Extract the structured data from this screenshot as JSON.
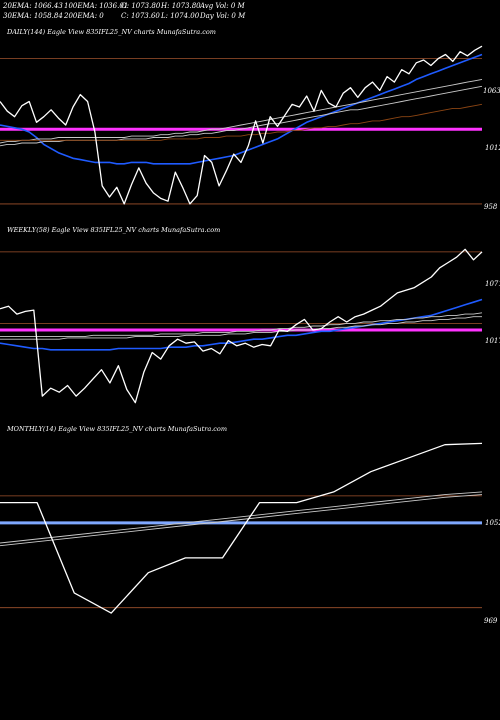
{
  "header": {
    "row1": {
      "ema20": "20EMA: 1066.43",
      "ema100": "100EMA: 1036.01",
      "open": "O: 1073.80",
      "high": "H: 1073.80",
      "avg_vol": "Avg Vol: 0  M"
    },
    "row2": {
      "ema30": "30EMA: 1058.84",
      "ema200": "200EMA: 0",
      "close": "C: 1073.60",
      "low": "L: 1074.00",
      "day_vol": "Day Vol: 0  M"
    }
  },
  "colors": {
    "background": "#000000",
    "price_line": "#ffffff",
    "ema_blue": "#1f5bff",
    "ema_gray": "#c9c9c9",
    "ema_brown": "#8b4513",
    "level_line": "#a0522d",
    "magenta_band": "#ff33ff",
    "blue_band": "#7fa8ff"
  },
  "chart_data": [
    {
      "type": "line",
      "title": "DAILY(144) Eagle   View  835IFL25_NV charts MunafaSutra.com",
      "y_ticks": [
        "1063",
        "1012",
        "958"
      ],
      "y_tick_values": [
        1063,
        1012,
        958
      ],
      "ylim": [
        950,
        1075
      ],
      "x_count": 67,
      "highlight_band": 1012,
      "series": [
        {
          "role": "price",
          "color": "#ffffff",
          "values": [
            1032,
            1025,
            1021,
            1029,
            1032,
            1017,
            1021,
            1026,
            1020,
            1015,
            1028,
            1037,
            1032,
            1010,
            971,
            963,
            970,
            958,
            972,
            984,
            973,
            966,
            962,
            960,
            981,
            970,
            958,
            964,
            993,
            988,
            971,
            982,
            994,
            988,
            1000,
            1018,
            1002,
            1021,
            1014,
            1022,
            1030,
            1028,
            1036,
            1025,
            1040,
            1031,
            1028,
            1038,
            1042,
            1035,
            1042,
            1046,
            1040,
            1050,
            1046,
            1055,
            1052,
            1060,
            1062,
            1058,
            1063,
            1066,
            1061,
            1068,
            1065,
            1069,
            1072
          ]
        },
        {
          "role": "ema",
          "color": "#1f5bff",
          "values": [
            1015,
            1014,
            1013,
            1012,
            1010,
            1006,
            1001,
            998,
            995,
            993,
            991,
            990,
            989,
            988,
            988,
            988,
            987,
            987,
            988,
            988,
            988,
            987,
            987,
            987,
            987,
            987,
            987,
            988,
            989,
            990,
            991,
            992,
            993,
            995,
            997,
            999,
            1001,
            1003,
            1005,
            1008,
            1011,
            1014,
            1017,
            1019,
            1021,
            1023,
            1025,
            1027,
            1029,
            1031,
            1033,
            1035,
            1037,
            1039,
            1041,
            1043,
            1045,
            1048,
            1050,
            1052,
            1054,
            1056,
            1058,
            1060,
            1062,
            1064,
            1066
          ]
        },
        {
          "role": "ema",
          "color": "#c9c9c9",
          "values": [
            1002,
            1003,
            1003,
            1004,
            1004,
            1005,
            1005,
            1005,
            1006,
            1006,
            1006,
            1006,
            1006,
            1006,
            1006,
            1006,
            1006,
            1006,
            1007,
            1007,
            1007,
            1007,
            1008,
            1008,
            1009,
            1009,
            1010,
            1010,
            1011,
            1012,
            1012,
            1013,
            1014,
            1015,
            1016,
            1017,
            1018,
            1019,
            1020,
            1021,
            1022,
            1023,
            1024,
            1025,
            1026,
            1027,
            1028,
            1029,
            1030,
            1031,
            1032,
            1033,
            1034,
            1035,
            1036,
            1037,
            1038,
            1039,
            1040,
            1041,
            1042,
            1043,
            1044,
            1045,
            1046,
            1047,
            1048
          ]
        },
        {
          "role": "ema",
          "color": "#c9c9c9",
          "values": [
            1000,
            1001,
            1001,
            1002,
            1002,
            1002,
            1003,
            1003,
            1003,
            1004,
            1004,
            1004,
            1004,
            1004,
            1004,
            1004,
            1004,
            1005,
            1005,
            1005,
            1005,
            1006,
            1006,
            1006,
            1007,
            1007,
            1008,
            1008,
            1009,
            1009,
            1010,
            1011,
            1011,
            1012,
            1013,
            1014,
            1015,
            1016,
            1016,
            1017,
            1018,
            1019,
            1020,
            1021,
            1022,
            1023,
            1024,
            1025,
            1026,
            1026,
            1027,
            1028,
            1029,
            1030,
            1031,
            1032,
            1033,
            1034,
            1035,
            1036,
            1037,
            1038,
            1039,
            1040,
            1041,
            1042,
            1043
          ]
        },
        {
          "role": "ema",
          "color": "#8b4513",
          "values": [
            1004,
            1004,
            1004,
            1004,
            1004,
            1004,
            1004,
            1004,
            1004,
            1004,
            1004,
            1004,
            1004,
            1004,
            1004,
            1004,
            1004,
            1004,
            1004,
            1004,
            1004,
            1004,
            1004,
            1005,
            1005,
            1005,
            1005,
            1005,
            1006,
            1006,
            1006,
            1007,
            1007,
            1007,
            1008,
            1008,
            1009,
            1009,
            1010,
            1010,
            1011,
            1011,
            1012,
            1013,
            1013,
            1014,
            1014,
            1015,
            1016,
            1016,
            1017,
            1018,
            1018,
            1019,
            1020,
            1021,
            1021,
            1022,
            1023,
            1024,
            1025,
            1026,
            1027,
            1027,
            1028,
            1029,
            1030
          ]
        }
      ]
    },
    {
      "type": "line",
      "title": "WEEKLY(58) Eagle   View  835IFL25_NV charts MunafaSutra.com",
      "y_ticks": [
        "1071",
        "1017"
      ],
      "y_tick_values": [
        1071,
        1017
      ],
      "ylim": [
        950,
        1080
      ],
      "x_count": 58,
      "highlight_band": 1012,
      "series": [
        {
          "role": "price",
          "color": "#ffffff",
          "values": [
            1028,
            1030,
            1024,
            1026,
            1027,
            962,
            968,
            965,
            970,
            962,
            968,
            975,
            982,
            972,
            985,
            967,
            957,
            980,
            995,
            990,
            1000,
            1005,
            1002,
            1003,
            996,
            998,
            994,
            1004,
            1000,
            1002,
            999,
            1001,
            1000,
            1012,
            1011,
            1016,
            1020,
            1012,
            1013,
            1018,
            1022,
            1018,
            1022,
            1024,
            1027,
            1030,
            1035,
            1040,
            1042,
            1044,
            1048,
            1052,
            1059,
            1063,
            1067,
            1073,
            1065,
            1071
          ]
        },
        {
          "role": "ema",
          "color": "#1f5bff",
          "values": [
            1002,
            1001,
            1000,
            999,
            998,
            998,
            997,
            997,
            997,
            997,
            997,
            997,
            997,
            997,
            998,
            998,
            998,
            998,
            998,
            998,
            999,
            999,
            999,
            1000,
            1000,
            1001,
            1002,
            1002,
            1003,
            1004,
            1005,
            1005,
            1006,
            1007,
            1008,
            1008,
            1009,
            1010,
            1011,
            1011,
            1012,
            1013,
            1014,
            1015,
            1016,
            1017,
            1018,
            1019,
            1020,
            1021,
            1022,
            1023,
            1025,
            1027,
            1029,
            1031,
            1033,
            1035
          ]
        },
        {
          "role": "ema",
          "color": "#c9c9c9",
          "values": [
            1007,
            1007,
            1007,
            1007,
            1007,
            1007,
            1007,
            1007,
            1007,
            1007,
            1007,
            1008,
            1008,
            1008,
            1008,
            1008,
            1008,
            1008,
            1008,
            1009,
            1009,
            1009,
            1009,
            1009,
            1010,
            1010,
            1010,
            1010,
            1011,
            1011,
            1011,
            1012,
            1012,
            1013,
            1013,
            1014,
            1014,
            1015,
            1015,
            1016,
            1016,
            1017,
            1017,
            1018,
            1018,
            1019,
            1019,
            1020,
            1020,
            1021,
            1021,
            1022,
            1022,
            1023,
            1023,
            1024,
            1024,
            1025
          ]
        },
        {
          "role": "ema",
          "color": "#c9c9c9",
          "values": [
            1005,
            1005,
            1005,
            1005,
            1005,
            1005,
            1005,
            1005,
            1006,
            1006,
            1006,
            1006,
            1006,
            1006,
            1006,
            1006,
            1007,
            1007,
            1007,
            1007,
            1007,
            1007,
            1008,
            1008,
            1008,
            1008,
            1008,
            1009,
            1009,
            1009,
            1010,
            1010,
            1010,
            1011,
            1011,
            1012,
            1012,
            1012,
            1013,
            1013,
            1014,
            1014,
            1015,
            1015,
            1016,
            1016,
            1017,
            1017,
            1018,
            1018,
            1019,
            1019,
            1020,
            1020,
            1021,
            1021,
            1022,
            1022
          ]
        }
      ]
    },
    {
      "type": "line",
      "title": "MONTHLY(14) Eagle   View  835IFL25_NV charts MunafaSutra.com",
      "y_ticks": [
        "1052",
        "969"
      ],
      "y_tick_values": [
        1052,
        969
      ],
      "ylim": [
        945,
        1095
      ],
      "x_count": 14,
      "highlight_band": 1032,
      "series": [
        {
          "role": "price",
          "color": "#ffffff",
          "values": [
            1047,
            1047,
            980,
            965,
            995,
            1006,
            1006,
            1047,
            1047,
            1055,
            1070,
            1080,
            1090,
            1091
          ]
        },
        {
          "role": "ema",
          "color": "#c9c9c9",
          "values": [
            1017,
            1020,
            1023,
            1026,
            1029,
            1032,
            1035,
            1038,
            1041,
            1044,
            1047,
            1050,
            1053,
            1055
          ]
        },
        {
          "role": "ema",
          "color": "#c9c9c9",
          "values": [
            1015,
            1018,
            1021,
            1024,
            1027,
            1030,
            1033,
            1036,
            1039,
            1042,
            1045,
            1048,
            1051,
            1053
          ]
        }
      ]
    }
  ]
}
